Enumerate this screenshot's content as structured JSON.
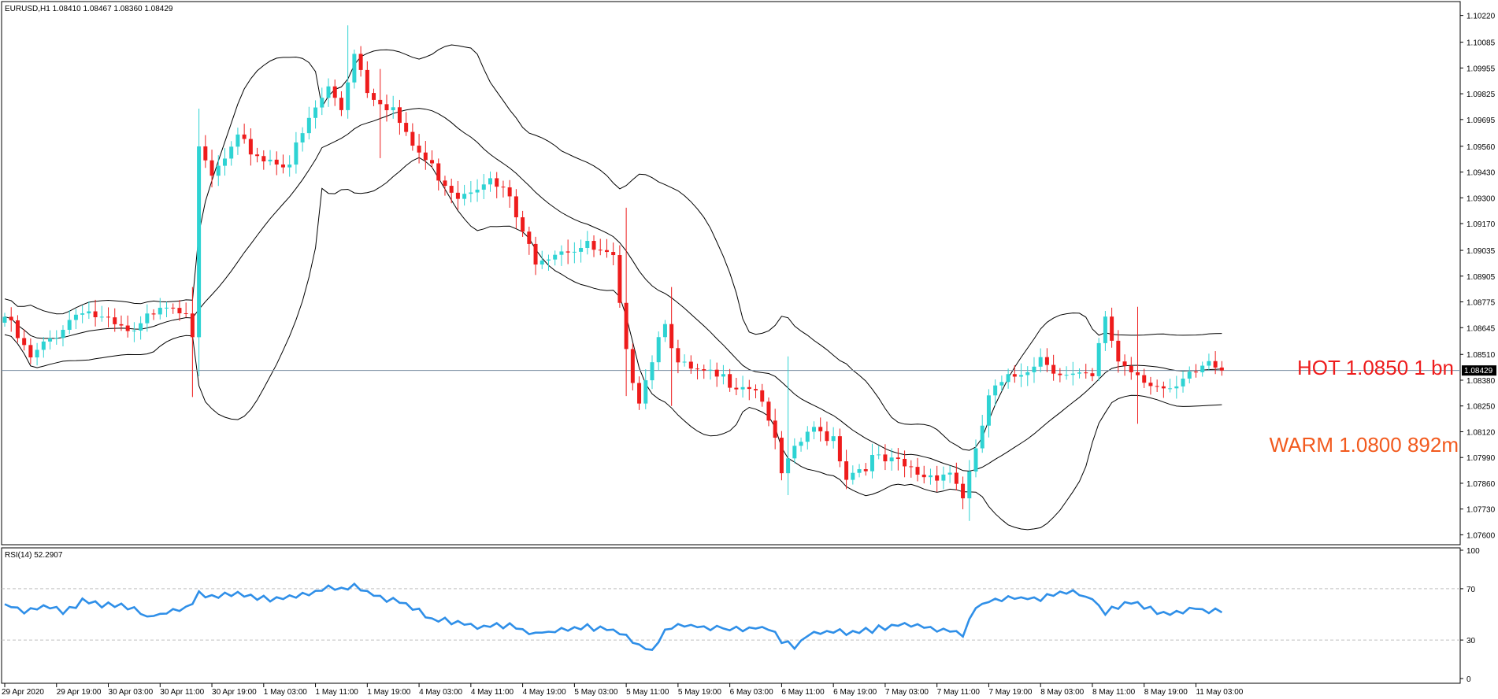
{
  "chart_data": {
    "type": "candlestick",
    "symbol_header": "EURUSD,H1  1.08410 1.08467 1.08360 1.08429",
    "current_price": 1.08429,
    "current_price_label": "1.08429",
    "price_axis": {
      "range": [
        1.0755,
        1.1029
      ],
      "ticks": [
        1.1022,
        1.10085,
        1.09955,
        1.09825,
        1.09695,
        1.0956,
        1.0943,
        1.093,
        1.0917,
        1.09035,
        1.08905,
        1.08775,
        1.08645,
        1.0851,
        1.0838,
        1.0825,
        1.0812,
        1.0799,
        1.0786,
        1.0773,
        1.076
      ],
      "tick_labels": [
        "1.10220",
        "1.10085",
        "1.09955",
        "1.09825",
        "1.09695",
        "1.09560",
        "1.09430",
        "1.09300",
        "1.09170",
        "1.09035",
        "1.08905",
        "1.08775",
        "1.08645",
        "1.08510",
        "1.08380",
        "1.08250",
        "1.08120",
        "1.07990",
        "1.07860",
        "1.07730",
        "1.07600"
      ]
    },
    "time_axis": {
      "ticks": [
        {
          "index": 0,
          "label": "29 Apr 2020"
        },
        {
          "index": 8,
          "label": "29 Apr 19:00"
        },
        {
          "index": 16,
          "label": "30 Apr 03:00"
        },
        {
          "index": 24,
          "label": "30 Apr 11:00"
        },
        {
          "index": 32,
          "label": "30 Apr 19:00"
        },
        {
          "index": 40,
          "label": "1 May 03:00"
        },
        {
          "index": 48,
          "label": "1 May 11:00"
        },
        {
          "index": 56,
          "label": "1 May 19:00"
        },
        {
          "index": 64,
          "label": "4 May 03:00"
        },
        {
          "index": 72,
          "label": "4 May 11:00"
        },
        {
          "index": 80,
          "label": "4 May 19:00"
        },
        {
          "index": 88,
          "label": "5 May 03:00"
        },
        {
          "index": 96,
          "label": "5 May 11:00"
        },
        {
          "index": 104,
          "label": "5 May 19:00"
        },
        {
          "index": 112,
          "label": "6 May 03:00"
        },
        {
          "index": 120,
          "label": "6 May 11:00"
        },
        {
          "index": 128,
          "label": "6 May 19:00"
        },
        {
          "index": 136,
          "label": "7 May 03:00"
        },
        {
          "index": 144,
          "label": "7 May 11:00"
        },
        {
          "index": 152,
          "label": "7 May 19:00"
        },
        {
          "index": 160,
          "label": "8 May 03:00"
        },
        {
          "index": 168,
          "label": "8 May 11:00"
        },
        {
          "index": 176,
          "label": "8 May 19:00"
        },
        {
          "index": 184,
          "label": "11 May 03:00"
        }
      ]
    },
    "close_keypoints": [
      [
        0,
        1.087
      ],
      [
        4,
        1.0848
      ],
      [
        8,
        1.0862
      ],
      [
        12,
        1.0875
      ],
      [
        16,
        1.0866
      ],
      [
        20,
        1.086
      ],
      [
        24,
        1.0878
      ],
      [
        28,
        1.0875
      ],
      [
        29,
        1.0862
      ],
      [
        30,
        1.0952
      ],
      [
        32,
        1.094
      ],
      [
        36,
        1.0958
      ],
      [
        40,
        1.095
      ],
      [
        44,
        1.0948
      ],
      [
        48,
        1.0975
      ],
      [
        50,
        1.0985
      ],
      [
        52,
        1.0975
      ],
      [
        54,
        1.1005
      ],
      [
        56,
        1.0985
      ],
      [
        60,
        1.0975
      ],
      [
        62,
        1.096
      ],
      [
        66,
        1.0945
      ],
      [
        70,
        1.0932
      ],
      [
        74,
        1.094
      ],
      [
        78,
        1.093
      ],
      [
        80,
        1.091
      ],
      [
        82,
        1.09
      ],
      [
        86,
        1.0905
      ],
      [
        90,
        1.0905
      ],
      [
        94,
        1.0898
      ],
      [
        96,
        1.085
      ],
      [
        98,
        1.083
      ],
      [
        102,
        1.087
      ],
      [
        104,
        1.0845
      ],
      [
        108,
        1.084
      ],
      [
        112,
        1.0838
      ],
      [
        116,
        1.0835
      ],
      [
        118,
        1.082
      ],
      [
        120,
        1.079
      ],
      [
        124,
        1.0812
      ],
      [
        128,
        1.081
      ],
      [
        130,
        1.079
      ],
      [
        134,
        1.0798
      ],
      [
        138,
        1.0795
      ],
      [
        142,
        1.079
      ],
      [
        146,
        1.0792
      ],
      [
        148,
        1.078
      ],
      [
        150,
        1.08
      ],
      [
        152,
        1.083
      ],
      [
        156,
        1.084
      ],
      [
        160,
        1.085
      ],
      [
        164,
        1.084
      ],
      [
        168,
        1.0838
      ],
      [
        170,
        1.087
      ],
      [
        172,
        1.0848
      ],
      [
        176,
        1.084
      ],
      [
        180,
        1.083
      ],
      [
        184,
        1.0842
      ],
      [
        186,
        1.0848
      ],
      [
        188,
        1.0843
      ]
    ],
    "spikes": {
      "29": [
        1.08295,
        1.0885
      ],
      "30": [
        1.084,
        1.0975
      ],
      "53": [
        1.09975,
        1.1017
      ],
      "58": [
        1.095,
        1.0995
      ],
      "96": [
        1.083,
        1.0925
      ],
      "103": [
        1.0825,
        1.0885
      ],
      "121": [
        1.078,
        1.085
      ],
      "149": [
        1.0767,
        1.0795
      ],
      "175": [
        1.0816,
        1.0875
      ]
    },
    "bollinger": {
      "period": 20,
      "deviation": 2
    },
    "levels": [
      {
        "label": "HOT 1.0850 1 bn",
        "price": 1.085,
        "color": "#ee1c1c"
      },
      {
        "label": "WARM 1.0800 892m",
        "price": 1.08,
        "color": "#f25a1e"
      }
    ],
    "colors": {
      "bull": "#2ed3d3",
      "bear": "#ee1c1c",
      "bands": "#000000",
      "price_line": "#7a8ea2",
      "rsi": "#2f8fe8",
      "grid": "#c0c0c0"
    },
    "rsi": {
      "label": "RSI(14) 52.2907",
      "period": 14,
      "axis": {
        "min": 0,
        "max": 100,
        "ticks": [
          100,
          70,
          30,
          0
        ],
        "tick_labels": [
          "100",
          "70",
          "30",
          "0"
        ],
        "dashed_levels": [
          70,
          30
        ]
      },
      "keypoints": [
        [
          0,
          58
        ],
        [
          3,
          51
        ],
        [
          6,
          57
        ],
        [
          9,
          52
        ],
        [
          12,
          60
        ],
        [
          16,
          57
        ],
        [
          20,
          55
        ],
        [
          22,
          48
        ],
        [
          26,
          52
        ],
        [
          28,
          54
        ],
        [
          30,
          66
        ],
        [
          32,
          64
        ],
        [
          36,
          67
        ],
        [
          40,
          62
        ],
        [
          44,
          63
        ],
        [
          48,
          68
        ],
        [
          50,
          72
        ],
        [
          52,
          70
        ],
        [
          54,
          73
        ],
        [
          56,
          68
        ],
        [
          58,
          63
        ],
        [
          62,
          58
        ],
        [
          66,
          46
        ],
        [
          70,
          44
        ],
        [
          74,
          40
        ],
        [
          78,
          42
        ],
        [
          80,
          38
        ],
        [
          82,
          35
        ],
        [
          86,
          38
        ],
        [
          90,
          40
        ],
        [
          94,
          38
        ],
        [
          96,
          32
        ],
        [
          98,
          25
        ],
        [
          100,
          22
        ],
        [
          102,
          38
        ],
        [
          104,
          42
        ],
        [
          108,
          40
        ],
        [
          112,
          38
        ],
        [
          116,
          40
        ],
        [
          118,
          38
        ],
        [
          120,
          30
        ],
        [
          122,
          24
        ],
        [
          124,
          34
        ],
        [
          128,
          38
        ],
        [
          130,
          34
        ],
        [
          134,
          38
        ],
        [
          138,
          42
        ],
        [
          142,
          40
        ],
        [
          146,
          38
        ],
        [
          148,
          35
        ],
        [
          150,
          55
        ],
        [
          152,
          60
        ],
        [
          156,
          63
        ],
        [
          160,
          62
        ],
        [
          164,
          68
        ],
        [
          168,
          62
        ],
        [
          170,
          52
        ],
        [
          174,
          60
        ],
        [
          176,
          55
        ],
        [
          180,
          50
        ],
        [
          184,
          55
        ],
        [
          186,
          53
        ],
        [
          188,
          52
        ]
      ]
    }
  }
}
